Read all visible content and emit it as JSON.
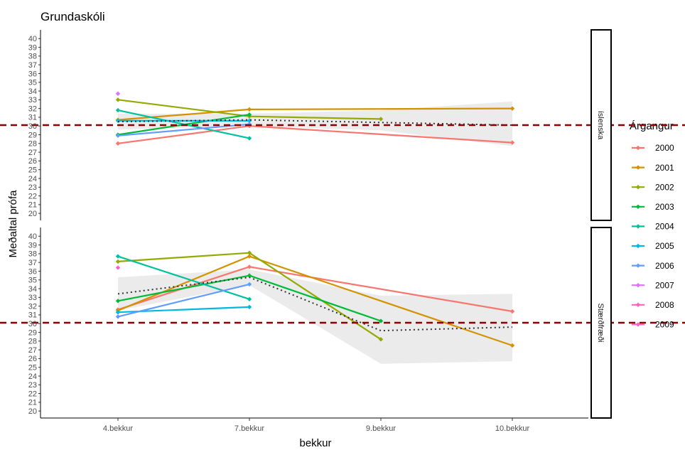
{
  "chart_data": {
    "type": "line",
    "title": "Grundaskóli",
    "xlabel": "bekkur",
    "ylabel": "Meðaltal prófa",
    "categories": [
      "4.bekkur",
      "7.bekkur",
      "9.bekkur",
      "10.bekkur"
    ],
    "ylim": [
      19.2,
      41
    ],
    "yticks": [
      20,
      21,
      22,
      23,
      24,
      25,
      26,
      27,
      28,
      29,
      30,
      31,
      32,
      33,
      34,
      35,
      36,
      37,
      38,
      39,
      40
    ],
    "reference_line": 30.1,
    "legend": {
      "title": "Árgangur",
      "placement": "right"
    },
    "grid": false,
    "colors": {
      "2000": "#F8766D",
      "2001": "#D39200",
      "2002": "#93AA00",
      "2003": "#00BA38",
      "2004": "#00C19F",
      "2005": "#00B9E3",
      "2006": "#619CFF",
      "2007": "#DB72FB",
      "2008": "#FF61C3",
      "2009": "#FF61C3"
    },
    "panels": [
      {
        "strip": "íslenska",
        "series": [
          {
            "name": "2000",
            "points": [
              [
                "4.bekkur",
                28.0
              ],
              [
                "7.bekkur",
                30.0
              ],
              [
                "10.bekkur",
                28.1
              ]
            ]
          },
          {
            "name": "2001",
            "points": [
              [
                "4.bekkur",
                30.7
              ],
              [
                "7.bekkur",
                31.9
              ],
              [
                "10.bekkur",
                32.0
              ]
            ]
          },
          {
            "name": "2002",
            "points": [
              [
                "4.bekkur",
                33.0
              ],
              [
                "7.bekkur",
                31.1
              ],
              [
                "9.bekkur",
                30.8
              ]
            ]
          },
          {
            "name": "2003",
            "points": [
              [
                "4.bekkur",
                29.0
              ],
              [
                "7.bekkur",
                31.3
              ]
            ]
          },
          {
            "name": "2004",
            "points": [
              [
                "4.bekkur",
                31.8
              ],
              [
                "7.bekkur",
                28.6
              ]
            ]
          },
          {
            "name": "2005",
            "points": [
              [
                "4.bekkur",
                30.6
              ],
              [
                "7.bekkur",
                30.6
              ]
            ]
          },
          {
            "name": "2006",
            "points": [
              [
                "4.bekkur",
                28.9
              ],
              [
                "7.bekkur",
                30.2
              ]
            ]
          },
          {
            "name": "2007",
            "points": [
              [
                "4.bekkur",
                33.7
              ]
            ]
          }
        ],
        "trend": [
          [
            "4.bekkur",
            30.5
          ],
          [
            "7.bekkur",
            30.7
          ],
          [
            "9.bekkur",
            30.4
          ],
          [
            "10.bekkur",
            30.1
          ]
        ],
        "ribbon": [
          [
            "4.bekkur",
            29.6,
            31.4
          ],
          [
            "7.bekkur",
            30.0,
            31.4
          ],
          [
            "9.bekkur",
            29.5,
            31.8
          ],
          [
            "10.bekkur",
            27.7,
            32.8
          ]
        ]
      },
      {
        "strip": "Stærðfræði",
        "series": [
          {
            "name": "2000",
            "points": [
              [
                "4.bekkur",
                31.6
              ],
              [
                "7.bekkur",
                36.5
              ],
              [
                "10.bekkur",
                31.4
              ]
            ]
          },
          {
            "name": "2001",
            "points": [
              [
                "4.bekkur",
                31.5
              ],
              [
                "7.bekkur",
                37.7
              ],
              [
                "10.bekkur",
                27.5
              ]
            ]
          },
          {
            "name": "2002",
            "points": [
              [
                "4.bekkur",
                37.1
              ],
              [
                "7.bekkur",
                38.1
              ],
              [
                "9.bekkur",
                28.2
              ]
            ]
          },
          {
            "name": "2003",
            "points": [
              [
                "4.bekkur",
                32.6
              ],
              [
                "7.bekkur",
                35.5
              ],
              [
                "9.bekkur",
                30.3
              ]
            ]
          },
          {
            "name": "2004",
            "points": [
              [
                "4.bekkur",
                37.7
              ],
              [
                "7.bekkur",
                32.8
              ]
            ]
          },
          {
            "name": "2005",
            "points": [
              [
                "4.bekkur",
                31.3
              ],
              [
                "7.bekkur",
                31.9
              ]
            ]
          },
          {
            "name": "2006",
            "points": [
              [
                "4.bekkur",
                30.8
              ],
              [
                "7.bekkur",
                34.5
              ]
            ]
          },
          {
            "name": "2008",
            "points": [
              [
                "4.bekkur",
                36.4
              ]
            ]
          }
        ],
        "trend": [
          [
            "4.bekkur",
            33.4
          ],
          [
            "7.bekkur",
            35.3
          ],
          [
            "9.bekkur",
            29.2
          ],
          [
            "10.bekkur",
            29.6
          ]
        ],
        "ribbon": [
          [
            "4.bekkur",
            31.5,
            35.3
          ],
          [
            "7.bekkur",
            34.4,
            36.2
          ],
          [
            "9.bekkur",
            25.4,
            33.2
          ],
          [
            "10.bekkur",
            25.7,
            33.4
          ]
        ]
      }
    ]
  }
}
